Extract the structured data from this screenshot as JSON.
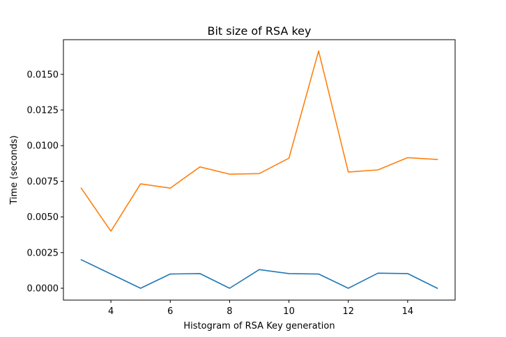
{
  "chart_data": {
    "type": "line",
    "title": "Bit size of RSA key",
    "xlabel": "Histogram of RSA Key generation",
    "ylabel": "Time (seconds)",
    "x": [
      3,
      4,
      5,
      6,
      7,
      8,
      9,
      10,
      11,
      12,
      13,
      14,
      15
    ],
    "xlim": [
      2.4,
      15.6
    ],
    "ylim": [
      -0.00083,
      0.01743
    ],
    "xticks": [
      4,
      6,
      8,
      10,
      12,
      14
    ],
    "xtick_labels": [
      "4",
      "6",
      "8",
      "10",
      "12",
      "14"
    ],
    "yticks": [
      0.0,
      0.0025,
      0.005,
      0.0075,
      0.01,
      0.0125,
      0.015
    ],
    "ytick_labels": [
      "0.0000",
      "0.0025",
      "0.0050",
      "0.0075",
      "0.0100",
      "0.0125",
      "0.0150"
    ],
    "grid": false,
    "series": [
      {
        "color": "#1f77b4",
        "values": [
          0.002,
          0.001,
          0.0,
          0.001,
          0.00103,
          0.0,
          0.00131,
          0.00103,
          0.001,
          0.0,
          0.00106,
          0.00103,
          0.0
        ]
      },
      {
        "color": "#ff7f0e",
        "values": [
          0.00702,
          0.004,
          0.00732,
          0.00702,
          0.00851,
          0.008,
          0.00804,
          0.00912,
          0.01664,
          0.00815,
          0.0083,
          0.00916,
          0.00903
        ]
      }
    ]
  }
}
